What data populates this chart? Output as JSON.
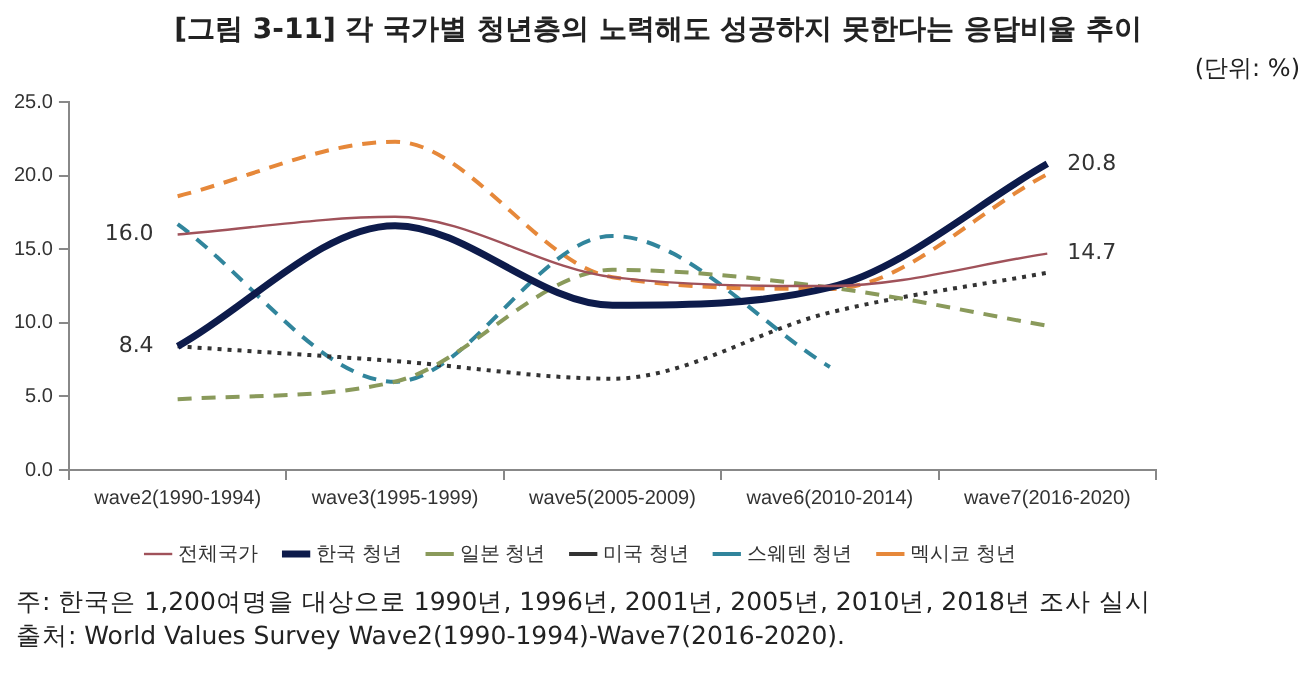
{
  "chart_data": {
    "type": "line",
    "title": "[그림 3-11] 각 국가별 청년층의 노력해도 성공하지 못한다는 응답비율 추이",
    "subtitle": "(단위: %)",
    "categories": [
      "wave2(1990-1994)",
      "wave3(1995-1999)",
      "wave5(2005-2009)",
      "wave6(2010-2014)",
      "wave7(2016-2020)"
    ],
    "series": [
      {
        "name": "전체국가",
        "color": "#a0525a",
        "line_style": "solid",
        "values": [
          16.0,
          17.2,
          13.1,
          12.5,
          14.7
        ],
        "value_labels": [
          "16.0",
          null,
          null,
          null,
          "14.7"
        ]
      },
      {
        "name": "한국 청년",
        "color": "#0d1b4b",
        "line_style": "solid",
        "values": [
          8.4,
          16.6,
          11.2,
          12.4,
          20.8
        ],
        "value_labels": [
          "8.4",
          null,
          null,
          null,
          "20.8"
        ]
      },
      {
        "name": "일본 청년",
        "color": "#8a9a5b",
        "line_style": "dashed",
        "values": [
          4.8,
          6.0,
          13.6,
          12.4,
          9.8
        ]
      },
      {
        "name": "미국 청년",
        "color": "#333333",
        "line_style": "dotted",
        "values": [
          8.4,
          7.4,
          6.2,
          10.7,
          13.4
        ]
      },
      {
        "name": "스웨덴 청년",
        "color": "#31859c",
        "line_style": "dashed",
        "values": [
          16.7,
          6.0,
          15.9,
          7.0,
          null
        ]
      },
      {
        "name": "멕시코 청년",
        "color": "#e6883a",
        "line_style": "dashed",
        "values": [
          18.6,
          22.3,
          13.1,
          12.3,
          20.1
        ]
      }
    ],
    "ylim": [
      0,
      25
    ],
    "yticks": [
      {
        "value": 0,
        "label": "0.0"
      },
      {
        "value": 5,
        "label": "5.0"
      },
      {
        "value": 10,
        "label": "10.0"
      },
      {
        "value": 15,
        "label": "15.0"
      },
      {
        "value": 20,
        "label": "20.0"
      },
      {
        "value": 25,
        "label": "25.0"
      }
    ],
    "grid": false,
    "legend": "bottom",
    "marker": "none",
    "annotations": [
      "주: 한국은 1,200여명을 대상으로 1990년, 1996년, 2001년, 2005년, 2010년, 2018년 조사 실시",
      "출처: World Values Survey Wave2(1990-1994)-Wave7(2016-2020)."
    ]
  }
}
